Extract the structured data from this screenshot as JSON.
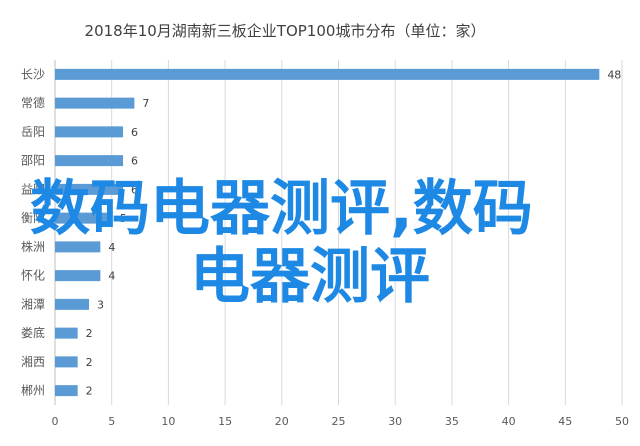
{
  "chart_data": {
    "type": "bar",
    "orientation": "horizontal",
    "title": "2018年10月湖南新三板企业TOP100城市分布（单位：家）",
    "categories": [
      "长沙",
      "常德",
      "岳阳",
      "邵阳",
      "益阳",
      "衡阳",
      "株洲",
      "怀化",
      "湘潭",
      "娄底",
      "湘西",
      "郴州"
    ],
    "values": [
      48,
      7,
      6,
      6,
      6,
      5,
      4,
      4,
      3,
      2,
      2,
      2
    ],
    "xlim": [
      0,
      50
    ],
    "xticks": [
      0,
      5,
      10,
      15,
      20,
      25,
      30,
      35,
      40,
      45,
      50
    ],
    "grid": true,
    "bar_color": "#5b9bd5"
  },
  "watermark": {
    "line1": "数码电器测评,数码",
    "line2": "电器测评",
    "color": "#1e88e5"
  }
}
